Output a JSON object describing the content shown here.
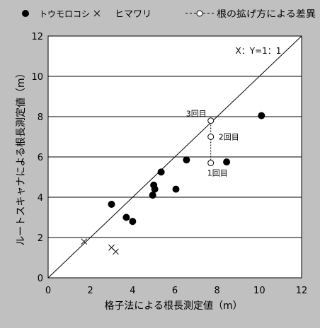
{
  "chart_data": {
    "type": "scatter",
    "title": "",
    "xlabel": "格子法による根長測定値（m）",
    "ylabel": "ルートスキャナによる根長測定値（m）",
    "xlim": [
      0,
      12
    ],
    "ylim": [
      0,
      12
    ],
    "x_ticks": [
      "0",
      "2",
      "4",
      "6",
      "8",
      "10",
      "12"
    ],
    "y_ticks": [
      "0",
      "2",
      "4",
      "6",
      "8",
      "10",
      "12"
    ],
    "grid": "horizontal",
    "legend_position": "top",
    "reference_line": {
      "label": "X：Y=1：1",
      "from": [
        0,
        0
      ],
      "to": [
        12,
        12
      ]
    },
    "series": [
      {
        "name": "トウモロコシ",
        "marker": "filled-circle",
        "points": [
          [
            3.0,
            3.65
          ],
          [
            3.7,
            3.0
          ],
          [
            4.0,
            2.8
          ],
          [
            4.95,
            4.1
          ],
          [
            5.0,
            4.6
          ],
          [
            5.05,
            4.4
          ],
          [
            5.35,
            5.25
          ],
          [
            6.05,
            4.4
          ],
          [
            6.55,
            5.85
          ],
          [
            8.45,
            5.75
          ],
          [
            10.1,
            8.05
          ]
        ]
      },
      {
        "name": "ヒマワリ",
        "marker": "x",
        "points": [
          [
            1.7,
            1.8
          ],
          [
            3.0,
            1.5
          ],
          [
            3.2,
            1.3
          ]
        ]
      },
      {
        "name": "根の拡げ方による差異",
        "marker": "open-circle-dashed",
        "points": [
          [
            7.7,
            5.7
          ],
          [
            7.7,
            7.0
          ],
          [
            7.7,
            7.8
          ]
        ],
        "point_labels": [
          "1回目",
          "2回目",
          "3回目"
        ]
      }
    ]
  }
}
